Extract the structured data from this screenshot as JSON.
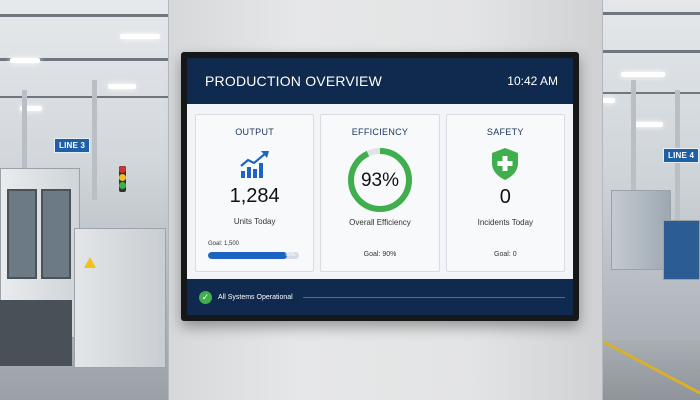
{
  "dashboard": {
    "title": "PRODUCTION OVERVIEW",
    "time": "10:42 AM"
  },
  "cards": {
    "output": {
      "title": "OUTPUT",
      "icon": "chart-trend-up-icon",
      "value": "1,284",
      "label": "Units Today",
      "goal": "Goal: 1,500",
      "progress_label": "86%",
      "progress_fraction": 0.86
    },
    "efficiency": {
      "title": "EFFICIENCY",
      "value": "93%",
      "value_fraction": 0.93,
      "label": "Overall Efficiency",
      "goal": "Goal: 90%"
    },
    "safety": {
      "title": "SAFETY",
      "icon": "shield-plus-icon",
      "value": "0",
      "label": "Incidents Today",
      "goal": "Goal: 0"
    }
  },
  "footer": {
    "status": "All Systems Operational",
    "icon": "check-circle-icon"
  },
  "background": {
    "sign_left": "LINE 3",
    "sign_right": "LINE 4"
  },
  "colors": {
    "header": "#0f2a4e",
    "accent_blue": "#1e63c4",
    "success_green": "#3fae4c"
  }
}
